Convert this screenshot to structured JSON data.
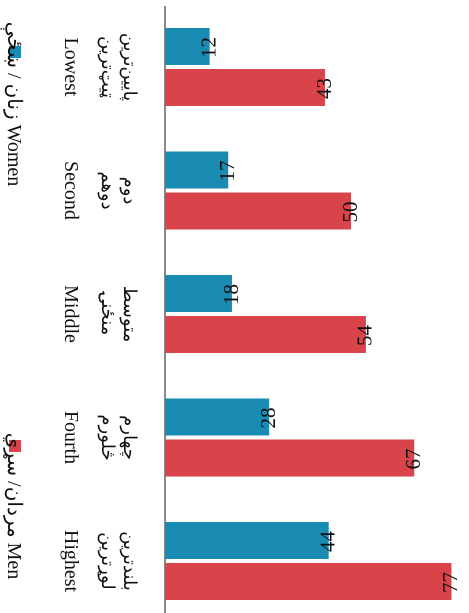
{
  "chart_data": {
    "type": "bar",
    "orientation": "horizontal",
    "categories": [
      {
        "en": "Lowest",
        "fa": "پایین‌ترین",
        "ps": "ټیټ‌ترین"
      },
      {
        "en": "Second",
        "fa": "دوم",
        "ps": "دوهم"
      },
      {
        "en": "Middle",
        "fa": "متوسط",
        "ps": "منځنۍ"
      },
      {
        "en": "Fourth",
        "fa": "چهارم",
        "ps": "څلورم"
      },
      {
        "en": "Highest",
        "fa": "بلندترین",
        "ps": "لوړترین"
      }
    ],
    "series": [
      {
        "name": "زنان / ښځې Women",
        "color": "#1a8bb3",
        "values": [
          12,
          17,
          18,
          28,
          44
        ]
      },
      {
        "name": "مردان/ سړي Men",
        "color": "#d9434a",
        "values": [
          43,
          50,
          54,
          67,
          77
        ]
      }
    ],
    "xlim": [
      0,
      80
    ],
    "legend_position": "left",
    "grid": false
  }
}
